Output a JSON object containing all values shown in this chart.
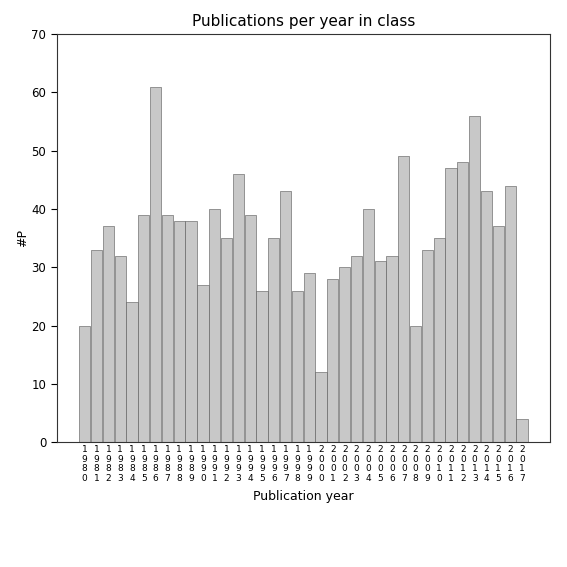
{
  "title": "Publications per year in class",
  "xlabel": "Publication year",
  "ylabel": "#P",
  "bar_color": "#c8c8c8",
  "edge_color": "#555555",
  "background_color": "#ffffff",
  "ylim": [
    0,
    70
  ],
  "yticks": [
    0,
    10,
    20,
    30,
    40,
    50,
    60,
    70
  ],
  "years": [
    1980,
    1981,
    1982,
    1983,
    1984,
    1985,
    1986,
    1987,
    1988,
    1989,
    1990,
    1991,
    1992,
    1993,
    1994,
    1995,
    1996,
    1997,
    1998,
    1999,
    2000,
    2001,
    2002,
    2003,
    2004,
    2005,
    2006,
    2007,
    2008,
    2009,
    2010,
    2011,
    2012,
    2013,
    2014,
    2015,
    2016,
    2017
  ],
  "values": [
    20,
    33,
    37,
    32,
    24,
    39,
    61,
    39,
    38,
    38,
    27,
    40,
    35,
    46,
    39,
    26,
    35,
    43,
    26,
    29,
    12,
    28,
    30,
    32,
    40,
    31,
    32,
    49,
    20,
    33,
    35,
    47,
    48,
    56,
    43,
    37,
    44,
    4
  ]
}
